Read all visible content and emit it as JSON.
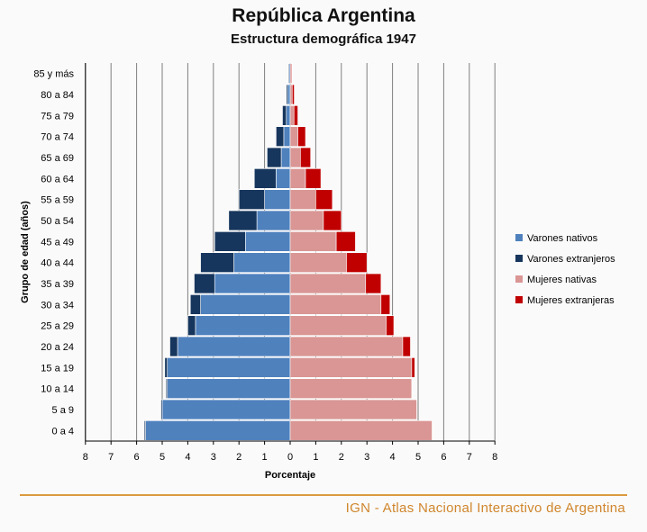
{
  "header": {
    "title": "República Argentina",
    "subtitle": "Estructura demográfica 1947"
  },
  "footer": {
    "text": "IGN - Atlas Nacional Interactivo de Argentina",
    "color": "#d0862d"
  },
  "chart_data": {
    "type": "bar",
    "orientation": "horizontal-population-pyramid",
    "title": "República Argentina",
    "subtitle": "Estructura demográfica 1947",
    "xlabel": "Porcentaje",
    "ylabel": "Grupo de edad (años)",
    "xlim": [
      -8,
      8
    ],
    "xticks": [
      8,
      7,
      6,
      5,
      4,
      3,
      2,
      1,
      0,
      1,
      2,
      3,
      4,
      5,
      6,
      7,
      8
    ],
    "grid": true,
    "legend_position": "right",
    "categories": [
      "0 a 4",
      "5 a 9",
      "10 a 14",
      "15 a 19",
      "20 a 24",
      "25 a 29",
      "30 a 34",
      "35 a 39",
      "40 a 44",
      "45 a 49",
      "50 a 54",
      "55 a 59",
      "60 a 64",
      "65 a 69",
      "70 a 74",
      "75 a 79",
      "80 a 84",
      "85 y más"
    ],
    "series": [
      {
        "name": "Varones nativos",
        "color": "#4f81bd",
        "side": "left",
        "values": [
          5.65,
          5.0,
          4.8,
          4.8,
          4.4,
          3.7,
          3.5,
          2.95,
          2.2,
          1.75,
          1.3,
          1.0,
          0.55,
          0.35,
          0.25,
          0.15,
          0.1,
          0.05
        ]
      },
      {
        "name": "Varones extranjeros",
        "color": "#17365d",
        "side": "left",
        "values": [
          0.05,
          0.05,
          0.05,
          0.1,
          0.3,
          0.3,
          0.4,
          0.8,
          1.3,
          1.2,
          1.1,
          1.0,
          0.85,
          0.55,
          0.3,
          0.15,
          0.05,
          0.03
        ]
      },
      {
        "name": "Mujeres nativas",
        "color": "#d99694",
        "side": "right",
        "values": [
          5.55,
          4.95,
          4.75,
          4.75,
          4.4,
          3.75,
          3.55,
          2.95,
          2.2,
          1.8,
          1.3,
          1.0,
          0.6,
          0.4,
          0.3,
          0.15,
          0.08,
          0.05
        ]
      },
      {
        "name": "Mujeres extranjeras",
        "color": "#c00000",
        "side": "right",
        "values": [
          0.02,
          0.02,
          0.02,
          0.12,
          0.3,
          0.3,
          0.35,
          0.6,
          0.8,
          0.75,
          0.7,
          0.65,
          0.6,
          0.4,
          0.3,
          0.15,
          0.08,
          0.03
        ]
      }
    ]
  }
}
